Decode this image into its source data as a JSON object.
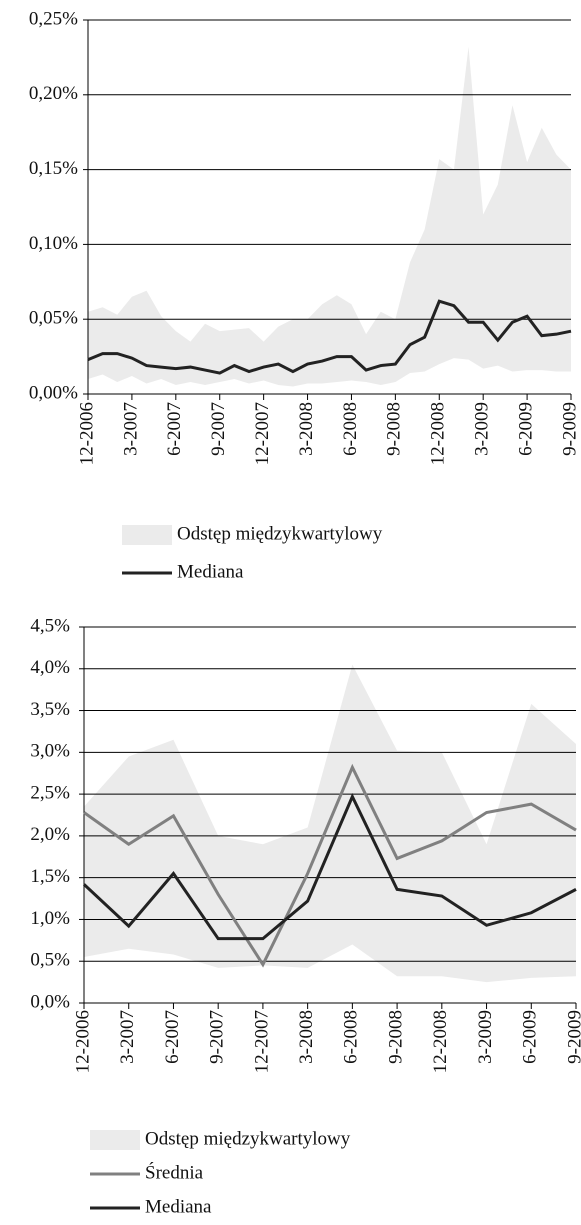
{
  "chart_data": [
    {
      "type": "line",
      "categories": [
        "12-2006",
        null,
        null,
        "3-2007",
        null,
        null,
        "6-2007",
        null,
        null,
        "9-2007",
        null,
        null,
        "12-2007",
        null,
        null,
        "3-2008",
        null,
        null,
        "6-2008",
        null,
        null,
        "9-2008",
        null,
        null,
        "12-2008",
        null,
        null,
        "3-2009",
        null,
        null,
        "6-2009",
        null,
        null,
        "9-2009"
      ],
      "series": [
        {
          "name": "Odstęp międzykwartylowy",
          "type": "band",
          "color": "#ebebeb",
          "values": [
            0.055,
            0.058,
            0.053,
            0.065,
            0.069,
            0.052,
            0.042,
            0.035,
            0.047,
            0.042,
            0.043,
            0.044,
            0.035,
            0.045,
            0.05,
            0.05,
            0.06,
            0.066,
            0.06,
            0.04,
            0.055,
            0.05,
            0.088,
            0.11,
            0.157,
            0.15,
            0.232,
            0.12,
            0.14,
            0.193,
            0.155,
            0.178,
            0.16,
            0.15
          ],
          "lower": [
            0.01,
            0.013,
            0.008,
            0.012,
            0.007,
            0.01,
            0.006,
            0.008,
            0.006,
            0.008,
            0.01,
            0.007,
            0.009,
            0.006,
            0.005,
            0.007,
            0.007,
            0.008,
            0.009,
            0.008,
            0.006,
            0.008,
            0.014,
            0.015,
            0.02,
            0.024,
            0.023,
            0.017,
            0.019,
            0.015,
            0.016,
            0.016,
            0.015,
            0.015
          ]
        },
        {
          "name": "Mediana",
          "color": "#222222",
          "values": [
            0.023,
            0.027,
            0.027,
            0.024,
            0.019,
            0.018,
            0.017,
            0.018,
            0.016,
            0.014,
            0.019,
            0.015,
            0.018,
            0.02,
            0.015,
            0.02,
            0.022,
            0.025,
            0.025,
            0.016,
            0.019,
            0.02,
            0.033,
            0.038,
            0.062,
            0.059,
            0.048,
            0.048,
            0.036,
            0.048,
            0.052,
            0.039,
            0.04,
            0.042
          ]
        }
      ],
      "ylim": [
        0,
        0.25
      ],
      "yticks": [
        {
          "value": 0,
          "label": "0,00%"
        },
        {
          "value": 0.05,
          "label": "0,05%"
        },
        {
          "value": 0.1,
          "label": "0,10%"
        },
        {
          "value": 0.15,
          "label": "0,15%"
        },
        {
          "value": 0.2,
          "label": "0,20%"
        },
        {
          "value": 0.25,
          "label": "0,25%"
        }
      ],
      "grid": true
    },
    {
      "type": "line",
      "categories": [
        "12-2006",
        "3-2007",
        "6-2007",
        "9-2007",
        "12-2007",
        "3-2008",
        "6-2008",
        "9-2008",
        "12-2008",
        "3-2009",
        "6-2009",
        "9-2009"
      ],
      "series": [
        {
          "name": "Odstęp międzykwartylowy",
          "type": "band",
          "color": "#ebebeb",
          "values": [
            2.35,
            2.95,
            3.15,
            2.0,
            1.9,
            2.1,
            4.05,
            3.02,
            3.0,
            1.9,
            3.58,
            3.1
          ],
          "lower": [
            0.55,
            0.65,
            0.58,
            0.42,
            0.45,
            0.42,
            0.7,
            0.32,
            0.32,
            0.25,
            0.3,
            0.32
          ]
        },
        {
          "name": "Średnia",
          "color": "#808080",
          "values": [
            2.28,
            1.9,
            2.24,
            1.3,
            0.46,
            1.55,
            2.82,
            1.73,
            1.94,
            2.28,
            2.38,
            2.07
          ]
        },
        {
          "name": "Mediana",
          "color": "#222222",
          "values": [
            1.42,
            0.92,
            1.55,
            0.77,
            0.77,
            1.22,
            2.47,
            1.36,
            1.28,
            0.93,
            1.08,
            1.36
          ]
        }
      ],
      "ylim": [
        0,
        4.5
      ],
      "yticks": [
        {
          "value": 0,
          "label": "0,0%"
        },
        {
          "value": 0.5,
          "label": "0,5%"
        },
        {
          "value": 1,
          "label": "1,0%"
        },
        {
          "value": 1.5,
          "label": "1,5%"
        },
        {
          "value": 2,
          "label": "2,0%"
        },
        {
          "value": 2.5,
          "label": "2,5%"
        },
        {
          "value": 3,
          "label": "3,0%"
        },
        {
          "value": 3.5,
          "label": "3,5%"
        },
        {
          "value": 4,
          "label": "4,0%"
        },
        {
          "value": 4.5,
          "label": "4,5%"
        }
      ],
      "grid": true
    }
  ]
}
